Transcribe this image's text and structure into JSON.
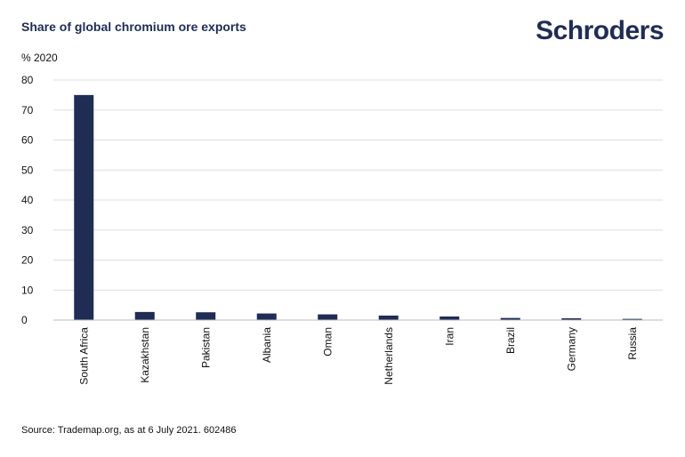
{
  "title": "Share of global chromium ore exports",
  "brand": "Schroders",
  "source": "Source: Trademap.org, as at 6 July 2021. 602486",
  "colors": {
    "bar": "#1f2d55",
    "grid": "#dddddd",
    "text": "#1f2d55"
  },
  "chart_data": {
    "type": "bar",
    "title": "Share of global chromium ore exports",
    "ylabel": "% 2020",
    "xlabel": "",
    "categories": [
      "South Africa",
      "Kazakhstan",
      "Pakistan",
      "Albania",
      "Oman",
      "Netherlands",
      "Iran",
      "Brazil",
      "Germany",
      "Russia"
    ],
    "values": [
      75,
      2.7,
      2.6,
      2.2,
      1.9,
      1.5,
      1.2,
      0.7,
      0.6,
      0.4
    ],
    "ylim": [
      0,
      80
    ],
    "yticks": [
      0,
      10,
      20,
      30,
      40,
      50,
      60,
      70,
      80
    ],
    "grid": true,
    "legend": "none"
  }
}
